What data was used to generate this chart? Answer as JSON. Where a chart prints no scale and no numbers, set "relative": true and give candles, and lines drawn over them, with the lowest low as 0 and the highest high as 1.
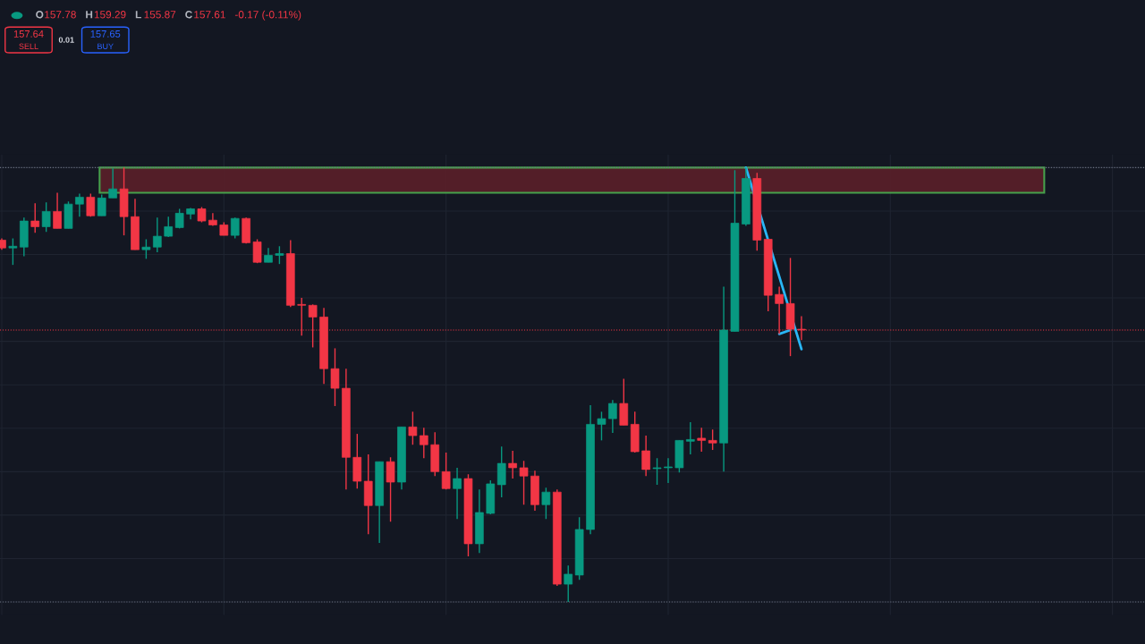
{
  "chart_data": {
    "type": "candlestick",
    "relative": true,
    "grid": true,
    "categories": [
      null,
      null,
      null,
      null,
      null,
      null,
      null,
      null,
      null,
      null,
      null,
      null,
      null,
      null,
      null,
      null,
      null,
      null,
      null,
      null,
      null,
      null,
      null,
      null,
      null,
      null,
      null,
      null,
      null,
      null,
      null,
      null,
      null,
      null,
      null,
      null,
      null,
      null,
      null,
      null,
      null,
      null,
      null,
      null,
      null,
      null,
      null,
      null,
      null,
      null,
      null,
      null,
      null,
      null,
      null,
      null,
      null,
      null,
      null,
      null,
      null,
      null,
      null,
      null,
      null,
      null,
      null,
      null,
      null,
      null,
      null,
      null,
      null
    ],
    "colors": [
      "#f23645",
      "#089981",
      "#089981",
      "#f23645",
      "#089981",
      "#f23645",
      "#089981",
      "#089981",
      "#f23645",
      "#089981",
      "#089981",
      "#f23645",
      "#f23645",
      "#089981",
      "#089981",
      "#089981",
      "#089981",
      "#089981",
      "#f23645",
      "#f23645",
      "#f23645",
      "#089981",
      "#f23645",
      "#f23645",
      "#089981",
      "#089981",
      "#f23645",
      "#f23645",
      "#f23645",
      "#f23645",
      "#f23645",
      "#f23645",
      "#f23645",
      "#f23645",
      "#089981",
      "#f23645",
      "#089981",
      "#f23645",
      "#f23645",
      "#f23645",
      "#f23645",
      "#089981",
      "#f23645",
      "#089981",
      "#089981",
      "#089981",
      "#f23645",
      "#f23645",
      "#f23645",
      "#089981",
      "#f23645",
      "#089981",
      "#089981",
      "#089981",
      "#089981",
      "#089981",
      "#f23645",
      "#f23645",
      "#f23645",
      "#089981",
      "#089981",
      "#089981",
      "#089981",
      "#f23645",
      "#f23645",
      "#089981",
      "#089981",
      "#089981",
      "#f23645",
      "#f23645",
      "#f23645",
      "#f23645",
      "#f23645"
    ],
    "ohlc": [
      [
        0.833,
        0.837,
        0.811,
        0.815
      ],
      [
        0.815,
        0.837,
        0.776,
        0.819
      ],
      [
        0.817,
        0.885,
        0.796,
        0.877
      ],
      [
        0.877,
        0.918,
        0.85,
        0.864
      ],
      [
        0.864,
        0.92,
        0.852,
        0.899
      ],
      [
        0.899,
        0.942,
        0.86,
        0.86
      ],
      [
        0.86,
        0.922,
        0.86,
        0.916
      ],
      [
        0.916,
        0.94,
        0.887,
        0.932
      ],
      [
        0.932,
        0.94,
        0.887,
        0.889
      ],
      [
        0.889,
        0.938,
        0.889,
        0.93
      ],
      [
        0.93,
        0.998,
        0.93,
        0.951
      ],
      [
        0.951,
        1.0,
        0.844,
        0.887
      ],
      [
        0.887,
        0.928,
        0.811,
        0.811
      ],
      [
        0.811,
        0.835,
        0.79,
        0.817
      ],
      [
        0.817,
        0.885,
        0.805,
        0.842
      ],
      [
        0.842,
        0.887,
        0.84,
        0.864
      ],
      [
        0.862,
        0.905,
        0.86,
        0.895
      ],
      [
        0.893,
        0.907,
        0.881,
        0.905
      ],
      [
        0.905,
        0.909,
        0.874,
        0.877
      ],
      [
        0.879,
        0.895,
        0.866,
        0.868
      ],
      [
        0.868,
        0.874,
        0.844,
        0.844
      ],
      [
        0.844,
        0.885,
        0.837,
        0.883
      ],
      [
        0.883,
        0.885,
        0.825,
        0.827
      ],
      [
        0.829,
        0.835,
        0.78,
        0.782
      ],
      [
        0.782,
        0.815,
        0.782,
        0.798
      ],
      [
        0.798,
        0.819,
        0.778,
        0.802
      ],
      [
        0.802,
        0.833,
        0.679,
        0.683
      ],
      [
        0.685,
        0.7,
        0.613,
        0.683
      ],
      [
        0.683,
        0.685,
        0.586,
        0.656
      ],
      [
        0.656,
        0.677,
        0.502,
        0.537
      ],
      [
        0.537,
        0.584,
        0.451,
        0.492
      ],
      [
        0.492,
        0.537,
        0.259,
        0.333
      ],
      [
        0.333,
        0.387,
        0.261,
        0.278
      ],
      [
        0.278,
        0.34,
        0.156,
        0.222
      ],
      [
        0.222,
        0.323,
        0.136,
        0.323
      ],
      [
        0.323,
        0.333,
        0.185,
        0.276
      ],
      [
        0.276,
        0.403,
        0.259,
        0.403
      ],
      [
        0.403,
        0.438,
        0.362,
        0.383
      ],
      [
        0.383,
        0.401,
        0.331,
        0.362
      ],
      [
        0.362,
        0.391,
        0.29,
        0.3
      ],
      [
        0.3,
        0.344,
        0.259,
        0.261
      ],
      [
        0.261,
        0.309,
        0.191,
        0.284
      ],
      [
        0.284,
        0.294,
        0.105,
        0.134
      ],
      [
        0.134,
        0.259,
        0.113,
        0.206
      ],
      [
        0.204,
        0.28,
        0.202,
        0.272
      ],
      [
        0.27,
        0.358,
        0.241,
        0.319
      ],
      [
        0.319,
        0.348,
        0.284,
        0.309
      ],
      [
        0.309,
        0.325,
        0.224,
        0.29
      ],
      [
        0.29,
        0.302,
        0.21,
        0.224
      ],
      [
        0.224,
        0.263,
        0.191,
        0.253
      ],
      [
        0.253,
        0.259,
        0.037,
        0.041
      ],
      [
        0.041,
        0.084,
        0.0,
        0.064
      ],
      [
        0.062,
        0.195,
        0.051,
        0.167
      ],
      [
        0.167,
        0.453,
        0.156,
        0.409
      ],
      [
        0.409,
        0.438,
        0.372,
        0.422
      ],
      [
        0.422,
        0.465,
        0.389,
        0.457
      ],
      [
        0.457,
        0.514,
        0.407,
        0.407
      ],
      [
        0.409,
        0.438,
        0.344,
        0.346
      ],
      [
        0.348,
        0.383,
        0.29,
        0.305
      ],
      [
        0.307,
        0.331,
        0.27,
        0.309
      ],
      [
        0.309,
        0.331,
        0.274,
        0.311
      ],
      [
        0.309,
        0.372,
        0.298,
        0.372
      ],
      [
        0.37,
        0.414,
        0.34,
        0.374
      ],
      [
        0.377,
        0.401,
        0.346,
        0.372
      ],
      [
        0.372,
        0.397,
        0.35,
        0.366
      ],
      [
        0.366,
        0.726,
        0.3,
        0.626
      ],
      [
        0.623,
        0.994,
        0.623,
        0.872
      ],
      [
        0.87,
        1.0,
        0.866,
        0.975
      ],
      [
        0.975,
        0.988,
        0.809,
        0.833
      ],
      [
        0.835,
        0.835,
        0.669,
        0.706
      ],
      [
        0.708,
        0.726,
        0.617,
        0.687
      ],
      [
        0.687,
        0.792,
        0.566,
        0.628
      ],
      [
        0.628,
        0.658,
        0.603,
        0.626
      ]
    ],
    "series": [
      {
        "type": "line",
        "color": "#29b6f6",
        "values": [
          null,
          null,
          null,
          null,
          null,
          null,
          null,
          null,
          null,
          null,
          null,
          null,
          null,
          null,
          null,
          null,
          null,
          null,
          null,
          null,
          null,
          null,
          null,
          null,
          null,
          null,
          null,
          null,
          null,
          null,
          null,
          null,
          null,
          null,
          null,
          null,
          null,
          null,
          null,
          null,
          null,
          null,
          null,
          null,
          null,
          null,
          null,
          null,
          null,
          null,
          null,
          null,
          null,
          null,
          null,
          null,
          null,
          null,
          null,
          null,
          null,
          null,
          null,
          null,
          null,
          null,
          null,
          1.0,
          null,
          null,
          null,
          null,
          0.582
        ]
      },
      {
        "type": "line",
        "color": "#29b6f6",
        "values": [
          null,
          null,
          null,
          null,
          null,
          null,
          null,
          null,
          null,
          null,
          null,
          null,
          null,
          null,
          null,
          null,
          null,
          null,
          null,
          null,
          null,
          null,
          null,
          null,
          null,
          null,
          null,
          null,
          null,
          null,
          null,
          null,
          null,
          null,
          null,
          null,
          null,
          null,
          null,
          null,
          null,
          null,
          null,
          null,
          null,
          null,
          null,
          null,
          null,
          null,
          null,
          null,
          null,
          null,
          null,
          null,
          null,
          null,
          null,
          null,
          null,
          null,
          null,
          null,
          null,
          null,
          null,
          null,
          null,
          null,
          0.617,
          0.626,
          null
        ]
      }
    ],
    "ref_lines": [
      {
        "axis": "y",
        "value": 0.626,
        "color": "#f23645",
        "line_style": "dotted"
      },
      {
        "axis": "y",
        "value": 1.0,
        "color": "#6b7080",
        "line_style": "dotted"
      },
      {
        "axis": "y",
        "value": 0.0,
        "color": "#6b7080",
        "line_style": "dotted"
      }
    ],
    "bands": [
      {
        "axis": "y",
        "from": 0.942,
        "to": 1.0,
        "color": "#5a1f29"
      }
    ],
    "annotations": [
      "O157.78",
      "H159.29",
      "L155.87",
      "C157.61",
      "-0.17 (-0.11%)",
      "157.64",
      "SELL",
      "0.01",
      "157.65",
      "BUY"
    ]
  }
}
